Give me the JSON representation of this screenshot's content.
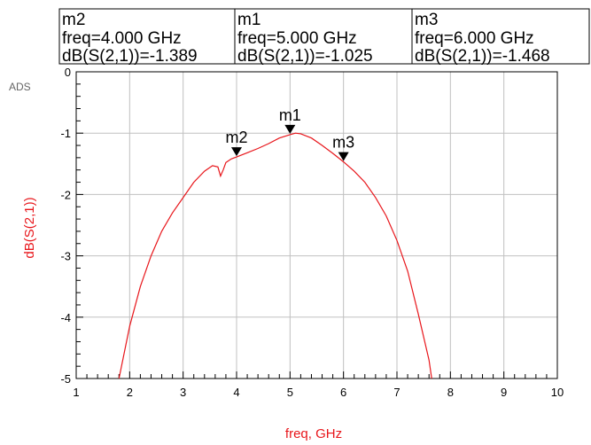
{
  "chart_data": {
    "type": "line",
    "watermark": "ADS",
    "xlabel": "freq, GHz",
    "ylabel": "dB(S(2,1))",
    "xlim": [
      1,
      10
    ],
    "ylim": [
      -5,
      0
    ],
    "xticks": [
      1,
      2,
      3,
      4,
      5,
      6,
      7,
      8,
      9,
      10
    ],
    "yticks": [
      0,
      -1,
      -2,
      -3,
      -4,
      -5
    ],
    "grid": true,
    "colors": {
      "trace": "#e8161b",
      "ylabel": "#e8161b",
      "xlabel": "#e8161b",
      "grid": "#c0c0c0"
    },
    "series": [
      {
        "x": [
          1.8,
          2.0,
          2.2,
          2.4,
          2.6,
          2.8,
          3.0,
          3.2,
          3.4,
          3.55,
          3.65,
          3.7,
          3.75,
          3.8,
          3.9,
          4.0,
          4.2,
          4.4,
          4.6,
          4.8,
          5.0,
          5.1,
          5.2,
          5.4,
          5.6,
          5.8,
          6.0,
          6.2,
          6.4,
          6.6,
          6.8,
          7.0,
          7.2,
          7.4,
          7.6,
          7.65
        ],
        "y": [
          -5.0,
          -4.15,
          -3.5,
          -3.0,
          -2.6,
          -2.3,
          -2.05,
          -1.8,
          -1.62,
          -1.53,
          -1.55,
          -1.7,
          -1.6,
          -1.48,
          -1.42,
          -1.389,
          -1.32,
          -1.25,
          -1.17,
          -1.08,
          -1.025,
          -1.0,
          -1.01,
          -1.08,
          -1.2,
          -1.33,
          -1.468,
          -1.62,
          -1.8,
          -2.05,
          -2.35,
          -2.75,
          -3.25,
          -3.95,
          -4.7,
          -5.0
        ]
      }
    ],
    "markers": [
      {
        "name": "m2",
        "x": 4.0,
        "y": -1.389,
        "freq_text": "freq=4.000 GHz",
        "value_text": "dB(S(2,1))=-1.389"
      },
      {
        "name": "m1",
        "x": 5.0,
        "y": -1.025,
        "freq_text": "freq=5.000 GHz",
        "value_text": "dB(S(2,1))=-1.025"
      },
      {
        "name": "m3",
        "x": 6.0,
        "y": -1.468,
        "freq_text": "freq=6.000 GHz",
        "value_text": "dB(S(2,1))=-1.468"
      }
    ]
  }
}
